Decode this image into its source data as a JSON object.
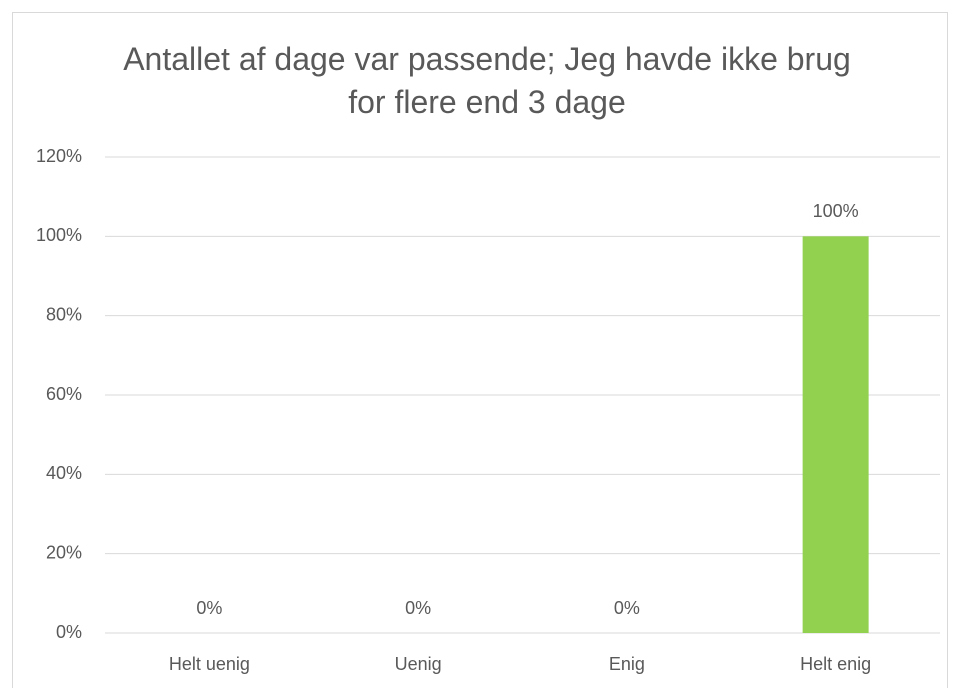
{
  "chart_data": {
    "type": "bar",
    "title": "Antallet af dage var passende; Jeg havde ikke brug for flere end 3 dage",
    "categories": [
      "Helt uenig",
      "Uenig",
      "Enig",
      "Helt enig"
    ],
    "values": [
      0,
      0,
      0,
      100
    ],
    "value_labels": [
      "0%",
      "0%",
      "0%",
      "100%"
    ],
    "color": "#92d050",
    "ylim": [
      0,
      120
    ],
    "yticks": [
      {
        "value": 0,
        "label": "0%"
      },
      {
        "value": 20,
        "label": "20%"
      },
      {
        "value": 40,
        "label": "40%"
      },
      {
        "value": 60,
        "label": "60%"
      },
      {
        "value": 80,
        "label": "80%"
      },
      {
        "value": 100,
        "label": "100%"
      },
      {
        "value": 120,
        "label": "120%"
      }
    ],
    "grid": true
  }
}
